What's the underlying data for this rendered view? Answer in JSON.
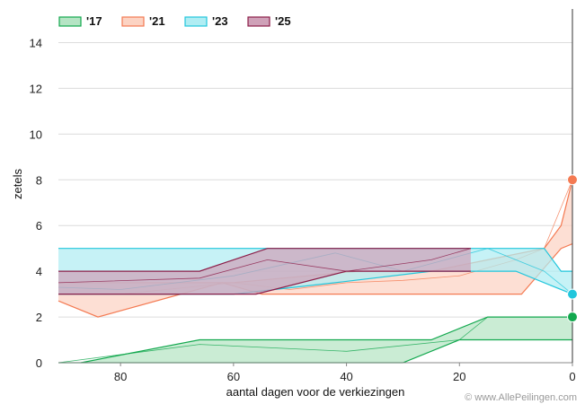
{
  "chart_data": {
    "type": "area",
    "title": "",
    "xlabel": "aantal dagen voor de verkiezingen",
    "ylabel": "zetels",
    "credit": "© www.AllePeilingen.com",
    "xlim": [
      91,
      0
    ],
    "ylim": [
      0,
      15
    ],
    "x_ticks": [
      80,
      60,
      40,
      20,
      0
    ],
    "y_ticks": [
      0,
      2,
      4,
      6,
      8,
      10,
      12,
      14
    ],
    "grid": true,
    "legend": "top-left",
    "series": [
      {
        "name": "'17",
        "color": "#12a84e",
        "fill": "#b5e4c4",
        "final_value": 2,
        "lower": [
          [
            91,
            0
          ],
          [
            30,
            0
          ],
          [
            20,
            1
          ],
          [
            2,
            1
          ],
          [
            0,
            1
          ]
        ],
        "upper": [
          [
            87,
            0
          ],
          [
            66,
            1
          ],
          [
            25,
            1
          ],
          [
            15,
            2
          ],
          [
            2,
            2
          ],
          [
            0,
            2
          ]
        ],
        "mid": [
          [
            91,
            0
          ],
          [
            66,
            0.8
          ],
          [
            40,
            0.5
          ],
          [
            20,
            1
          ],
          [
            15,
            2
          ],
          [
            0,
            2
          ]
        ]
      },
      {
        "name": "'21",
        "color": "#f47a52",
        "fill": "#fcd3c3",
        "final_value": 8,
        "lower": [
          [
            91,
            2.7
          ],
          [
            84,
            2
          ],
          [
            62,
            3.5
          ],
          [
            55,
            3
          ],
          [
            30,
            3
          ],
          [
            9,
            3
          ],
          [
            2,
            5
          ],
          [
            0,
            5.2
          ]
        ],
        "upper": [
          [
            91,
            3.5
          ],
          [
            78,
            3.5
          ],
          [
            60,
            3.5
          ],
          [
            38,
            4
          ],
          [
            25,
            4
          ],
          [
            15,
            4.5
          ],
          [
            5,
            5
          ],
          [
            2,
            6
          ],
          [
            0,
            8
          ]
        ],
        "mid": [
          [
            91,
            3
          ],
          [
            80,
            3
          ],
          [
            60,
            3.5
          ],
          [
            50,
            3.2
          ],
          [
            40,
            3.5
          ],
          [
            30,
            3.6
          ],
          [
            20,
            3.8
          ],
          [
            10,
            4.5
          ],
          [
            5,
            5
          ],
          [
            0,
            8
          ]
        ]
      },
      {
        "name": "'23",
        "color": "#22c6dc",
        "fill": "#b0edf3",
        "final_value": 3,
        "lower": [
          [
            91,
            3
          ],
          [
            80,
            3
          ],
          [
            60,
            3
          ],
          [
            42,
            3.5
          ],
          [
            25,
            4
          ],
          [
            10,
            4
          ],
          [
            5,
            3.5
          ],
          [
            0,
            3
          ]
        ],
        "upper": [
          [
            91,
            5
          ],
          [
            60,
            5
          ],
          [
            40,
            5
          ],
          [
            20,
            5
          ],
          [
            5,
            5
          ],
          [
            2,
            4
          ],
          [
            0,
            4
          ]
        ],
        "mid": [
          [
            91,
            3.3
          ],
          [
            80,
            3.2
          ],
          [
            60,
            3.8
          ],
          [
            42,
            4.8
          ],
          [
            30,
            4
          ],
          [
            15,
            5
          ],
          [
            5,
            4
          ],
          [
            0,
            3
          ]
        ]
      },
      {
        "name": "'25",
        "color": "#8c1d48",
        "fill": "#cfa1b8",
        "final_value": null,
        "lower": [
          [
            91,
            3
          ],
          [
            56,
            3
          ],
          [
            40,
            4
          ],
          [
            25,
            4
          ],
          [
            18,
            4
          ]
        ],
        "upper": [
          [
            91,
            4
          ],
          [
            66,
            4
          ],
          [
            54,
            5
          ],
          [
            18,
            5
          ]
        ],
        "mid": [
          [
            91,
            3.5
          ],
          [
            66,
            3.7
          ],
          [
            54,
            4.5
          ],
          [
            40,
            4
          ],
          [
            25,
            4.5
          ],
          [
            18,
            5
          ]
        ]
      }
    ]
  }
}
